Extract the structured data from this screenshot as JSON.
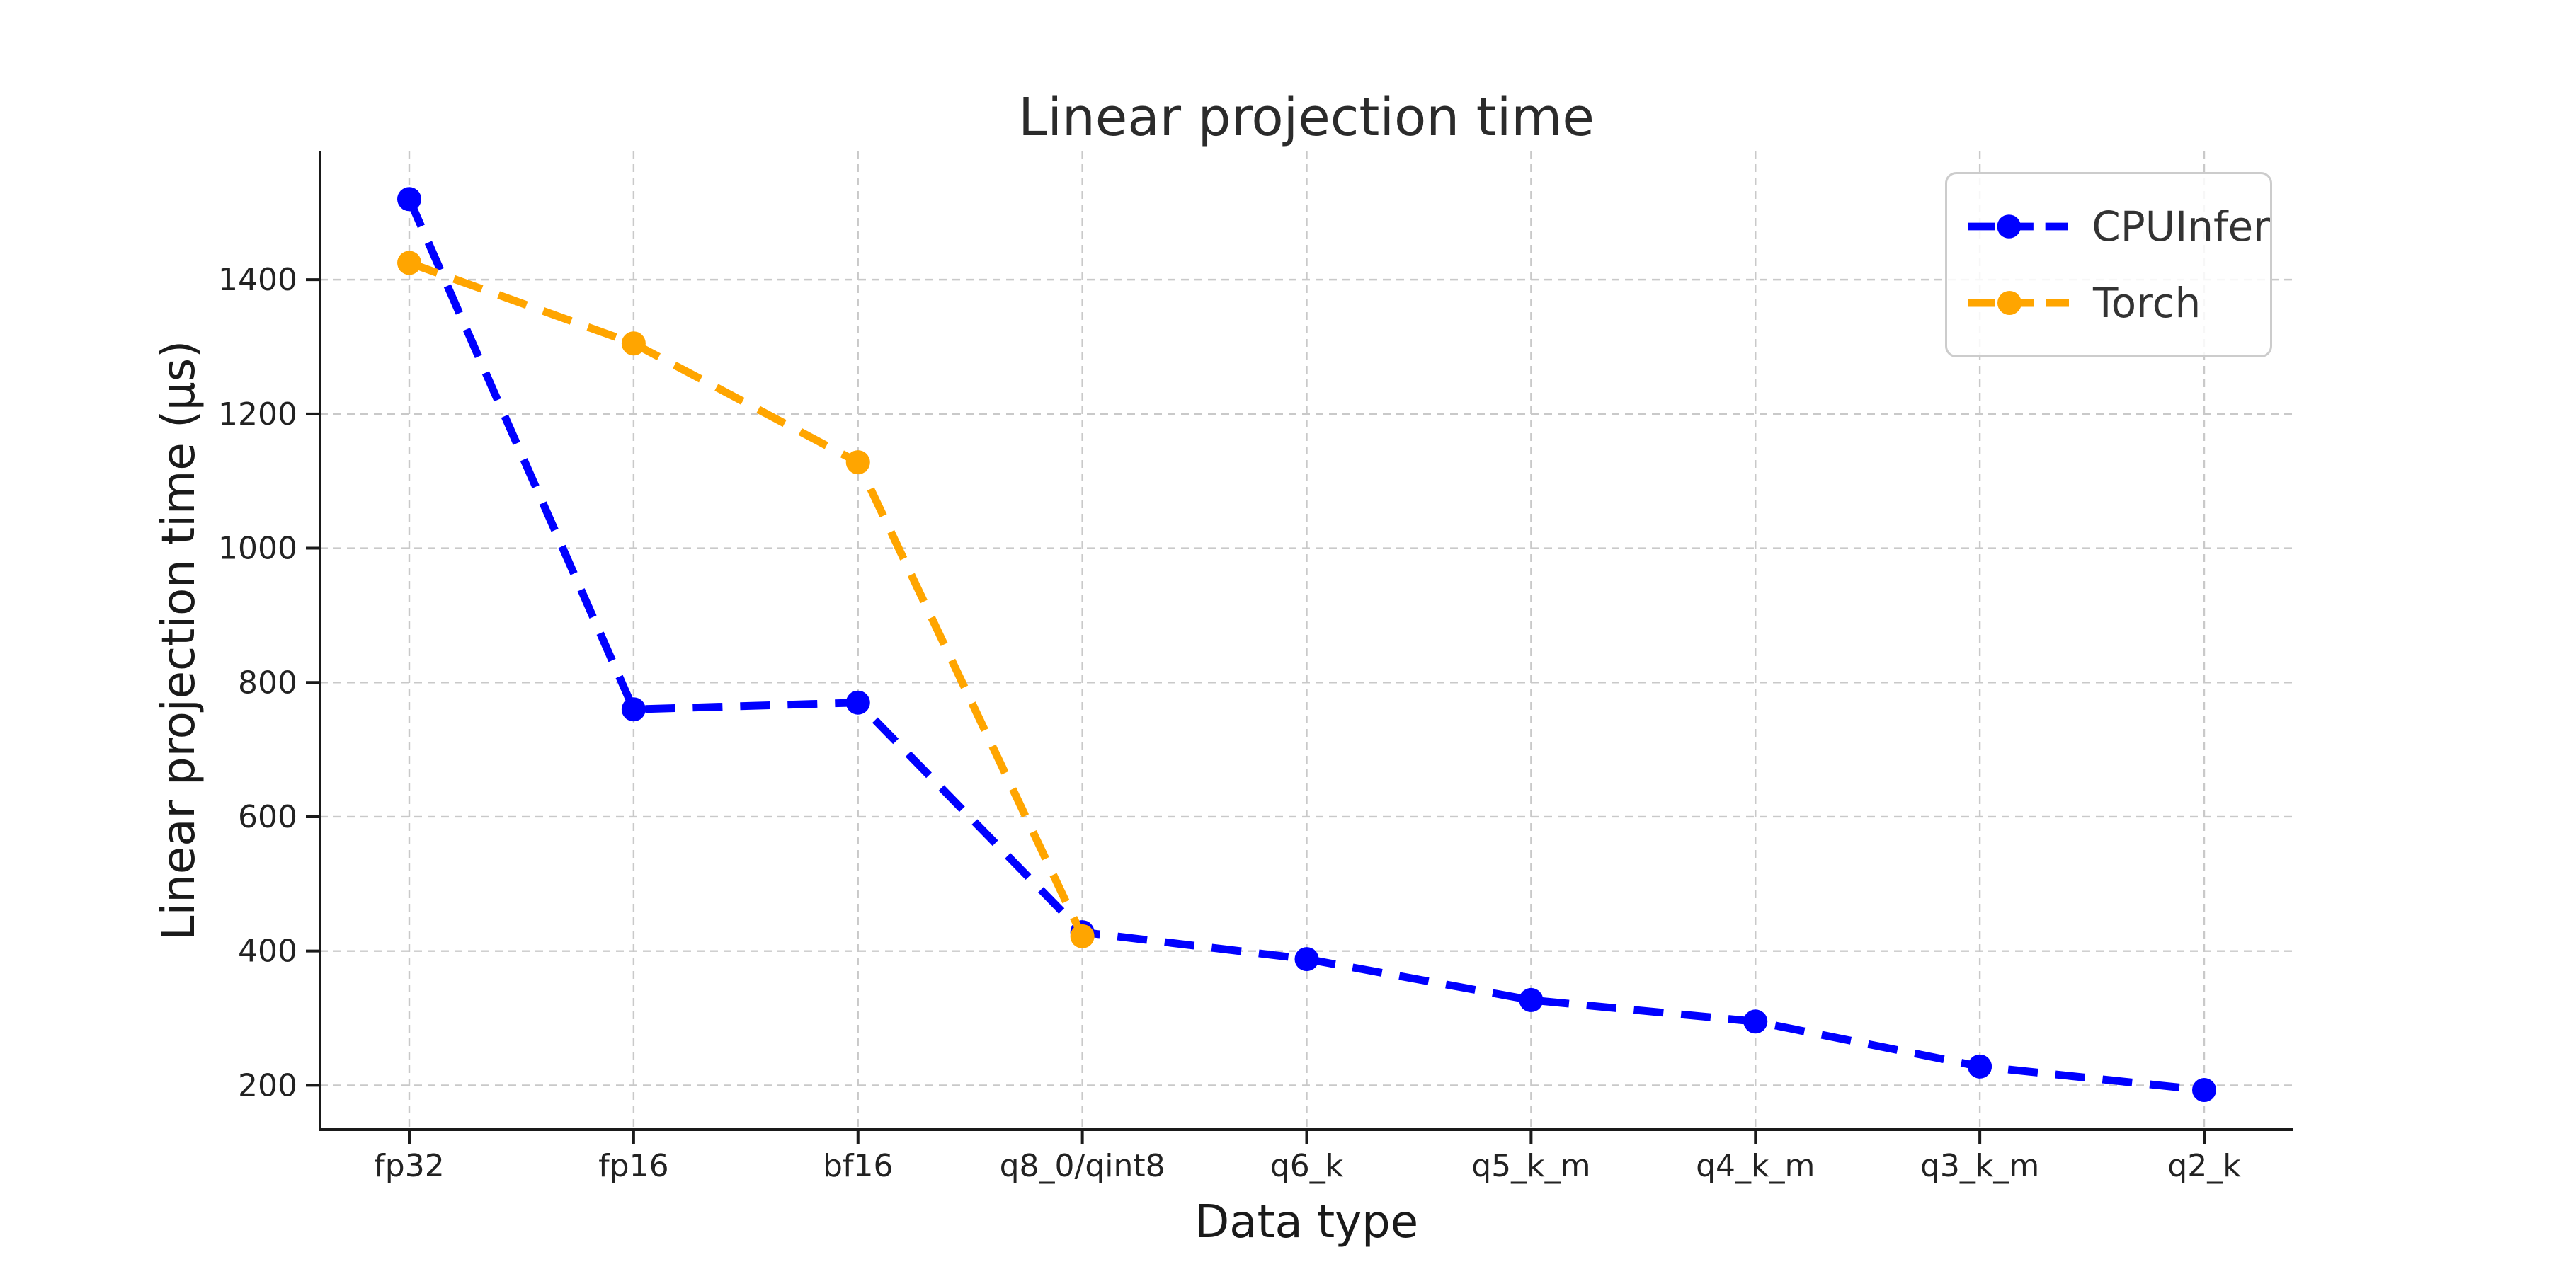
{
  "chart_data": {
    "type": "line",
    "title": "Linear projection time",
    "xlabel": "Data type",
    "ylabel": "Linear projection time (µs)",
    "categories": [
      "fp32",
      "fp16",
      "bf16",
      "q8_0/qint8",
      "q6_k",
      "q5_k_m",
      "q4_k_m",
      "q3_k_m",
      "q2_k"
    ],
    "series": [
      {
        "name": "CPUInfer",
        "color": "#0000ff",
        "values": [
          1520,
          760,
          770,
          428,
          388,
          327,
          295,
          228,
          193
        ]
      },
      {
        "name": "Torch",
        "color": "#ffa500",
        "values": [
          1425,
          1305,
          1128,
          422,
          null,
          null,
          null,
          null,
          null
        ]
      }
    ],
    "yticks": [
      200,
      400,
      600,
      800,
      1000,
      1200,
      1400
    ],
    "ylim": [
      134,
      1592
    ],
    "grid": true,
    "grid_color": "#c9c9c9",
    "line_style": "dashed",
    "marker": "o",
    "legend_position": "upper right",
    "axis_color": "#1a1a1a",
    "tick_label_color": "#222222"
  }
}
